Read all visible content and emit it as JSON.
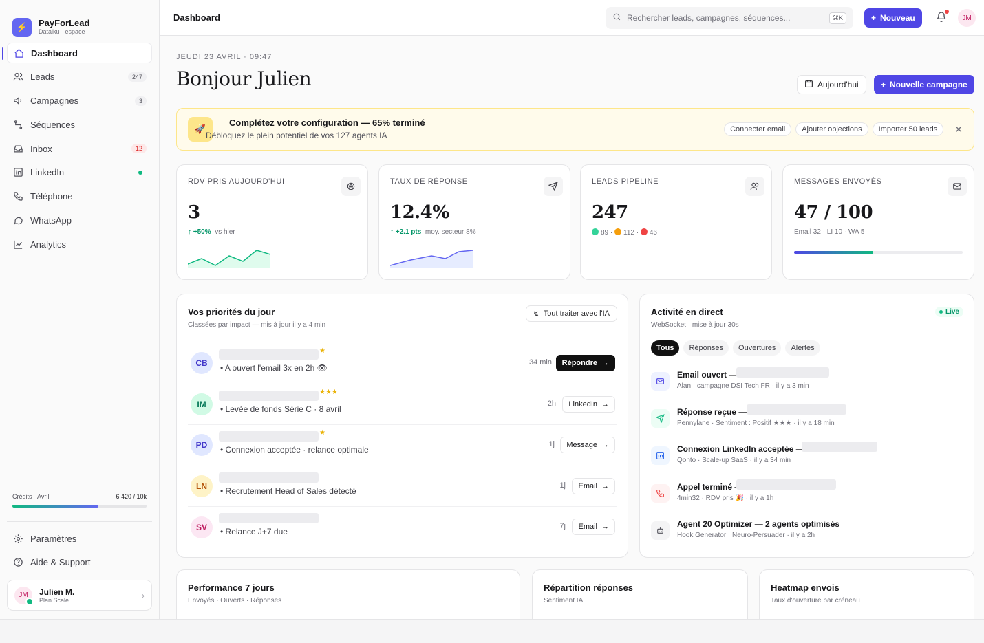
{
  "brand": {
    "name": "PayForLead",
    "workspace": "Dataiku · espace"
  },
  "sidebar": {
    "items": [
      {
        "label": "Dashboard",
        "badge": ""
      },
      {
        "label": "Leads",
        "badge": "247"
      },
      {
        "label": "Campagnes",
        "badge": "3"
      },
      {
        "label": "Séquences",
        "badge": ""
      },
      {
        "label": "Inbox",
        "badge": "12"
      },
      {
        "label": "LinkedIn",
        "badge": ""
      },
      {
        "label": "Téléphone",
        "badge": ""
      },
      {
        "label": "WhatsApp",
        "badge": ""
      },
      {
        "label": "Analytics",
        "badge": ""
      }
    ],
    "credits": {
      "label": "Crédits · Avril",
      "value": "6 420 / 10k",
      "fraction": 0.642
    },
    "bottom": [
      {
        "label": "Paramètres"
      },
      {
        "label": "Aide & Support"
      }
    ],
    "user": {
      "name": "Julien M.",
      "plan": "Plan Scale",
      "initials": "JM"
    }
  },
  "topbar": {
    "title": "Dashboard",
    "search_placeholder": "Rechercher leads, campagnes, séquences...",
    "shortcut": "⌘K",
    "new_label": "Nouveau",
    "avatar": "JM"
  },
  "header": {
    "date": "JEUDI 23 AVRIL · 09:47",
    "greeting": "Bonjour Julien",
    "today_label": "Aujourd'hui",
    "campaign_label": "Nouvelle campagne"
  },
  "banner": {
    "title": "Complétez votre configuration — 65% terminé",
    "subtitle": "Débloquez le plein potentiel de vos 127 agents IA",
    "actions": [
      "Connecter email",
      "Ajouter objections",
      "Importer 50 leads"
    ]
  },
  "kpis": [
    {
      "label": "RDV PRIS AUJOURD'HUI",
      "value": "3",
      "delta": "↑ +50%",
      "context": "vs hier",
      "icon": "target-icon"
    },
    {
      "label": "TAUX DE RÉPONSE",
      "value": "12.4%",
      "delta": "↑ +2.1 pts",
      "context": "moy. secteur 8%",
      "icon": "send-icon"
    },
    {
      "label": "LEADS PIPELINE",
      "value": "247",
      "pipe": [
        "89",
        "112",
        "46"
      ],
      "icon": "users-icon"
    },
    {
      "label": "MESSAGES ENVOYÉS",
      "value": "47 / 100",
      "context": "Email 32 · LI 10 · WA 5",
      "progress": 0.47,
      "icon": "mail-icon"
    }
  ],
  "priorities": {
    "title": "Vos priorités du jour",
    "subtitle": "Classées par impact — mis à jour il y a 4 min",
    "ai_label": "Tout traiter avec l'IA",
    "rows": [
      {
        "initials": "CB",
        "stars": "★",
        "desc": "A ouvert l'email 3x en 2h 👁",
        "time": "34 min",
        "action": "Répondre"
      },
      {
        "initials": "IM",
        "stars": "★★★",
        "desc": "Levée de fonds Série C · 8 avril",
        "time": "2h",
        "action": "LinkedIn"
      },
      {
        "initials": "PD",
        "stars": "★",
        "desc": "Connexion acceptée · relance optimale",
        "time": "1j",
        "action": "Message"
      },
      {
        "initials": "LN",
        "stars": "",
        "desc": "Recrutement Head of Sales détecté",
        "time": "1j",
        "action": "Email"
      },
      {
        "initials": "SV",
        "stars": "",
        "desc": "Relance J+7 due",
        "time": "7j",
        "action": "Email"
      }
    ]
  },
  "activity": {
    "title": "Activité en direct",
    "subtitle": "WebSocket · mise à jour 30s",
    "live": "Live",
    "filters": [
      "Tous",
      "Réponses",
      "Ouvertures",
      "Alertes"
    ],
    "items": [
      {
        "title": "Email ouvert — C",
        "sub": "Alan · campagne DSI Tech FR · il y a 3 min"
      },
      {
        "title": "Réponse reçue — N",
        "sub": "Pennylane · Sentiment : Positif ★★★ · il y a 18 min"
      },
      {
        "title": "Connexion LinkedIn acceptée — F",
        "sub": "Qonto · Scale-up SaaS · il y a 34 min"
      },
      {
        "title": "Appel terminé — A",
        "sub": "4min32 · RDV pris 🎉 · il y a 1h"
      },
      {
        "title": "Agent 20 Optimizer — 2 agents optimisés",
        "sub": "Hook Generator · Neuro-Persuader · il y a 2h"
      }
    ]
  },
  "bottom_cards": [
    {
      "title": "Performance 7 jours",
      "sub": "Envoyés · Ouverts · Réponses"
    },
    {
      "title": "Répartition réponses",
      "sub": "Sentiment IA"
    },
    {
      "title": "Heatmap envois",
      "sub": "Taux d'ouverture par créneau"
    }
  ]
}
